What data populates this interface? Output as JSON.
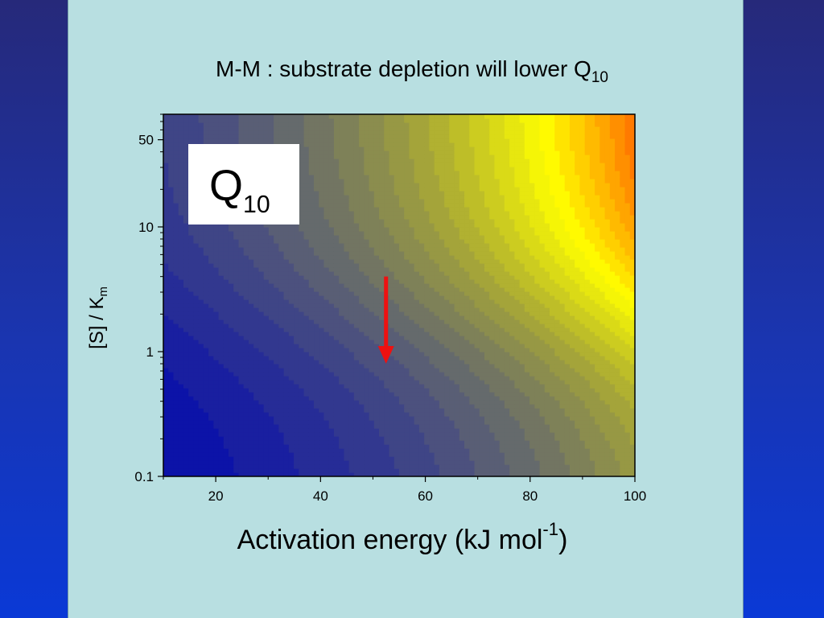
{
  "slide": {
    "title_main": "M-M : substrate depletion will lower Q",
    "title_sub": "10",
    "colors": {
      "background_top": "#26297a",
      "background_bottom": "#0a39d6",
      "panel": "#b8dfe1",
      "arrow": "#ee1111"
    }
  },
  "plot_label": {
    "text": "Q",
    "sub": "10"
  },
  "chart_data": {
    "type": "heatmap",
    "xlabel": "Activation energy (kJ mol",
    "xlabel_sup": "-1",
    "xlabel_end": ")",
    "ylabel": "[S] / K",
    "ylabel_sub": "m",
    "xlim": [
      10,
      100
    ],
    "ylim": [
      0.1,
      80
    ],
    "y_scale": "log",
    "x_ticks": [
      20,
      40,
      60,
      80,
      100
    ],
    "x_minor_ticks": [
      10,
      30,
      50,
      70,
      90
    ],
    "y_ticks": [
      {
        "value": 0.1,
        "label": "0.1"
      },
      {
        "value": 1,
        "label": "1"
      },
      {
        "value": 10,
        "label": "10"
      },
      {
        "value": 50,
        "label": "50"
      }
    ],
    "colormap": [
      "#0c13a8",
      "#5c6173",
      "#aaaa35",
      "#ffff00",
      "#ff7a00"
    ],
    "annotation": {
      "type": "arrow",
      "x": 52.5,
      "y_from": 4,
      "y_to": 0.8,
      "color": "#ee1111"
    }
  }
}
